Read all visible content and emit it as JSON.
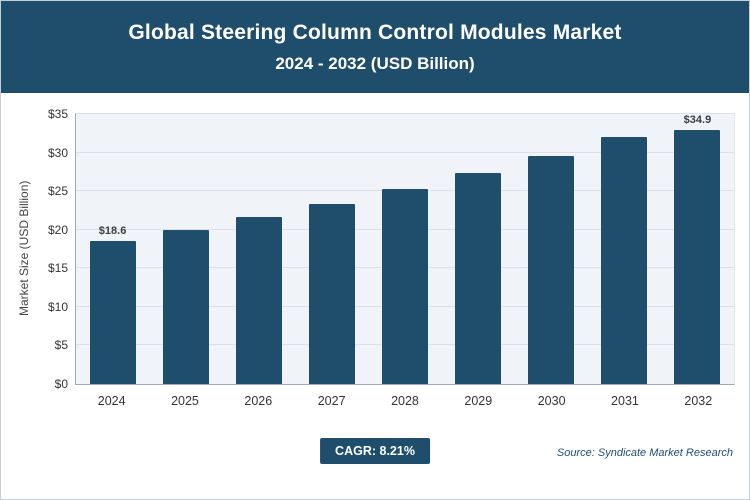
{
  "header": {
    "title": "Global Steering Column Control Modules Market",
    "subtitle": "2024 - 2032 (USD Billion)"
  },
  "chart_data": {
    "type": "bar",
    "title": "Global Steering Column Control Modules Market 2024 - 2032 (USD Billion)",
    "xlabel": "",
    "ylabel": "Market Size (USD Billion)",
    "ylim": [
      0,
      35
    ],
    "grid": true,
    "bar_color": "#1f4e6d",
    "plot_background": "#f0f3f8",
    "yticks": [
      {
        "value": 0,
        "label": "$0"
      },
      {
        "value": 5,
        "label": "$5"
      },
      {
        "value": 10,
        "label": "$10"
      },
      {
        "value": 15,
        "label": "$15"
      },
      {
        "value": 20,
        "label": "$20"
      },
      {
        "value": 25,
        "label": "$25"
      },
      {
        "value": 30,
        "label": "$30"
      },
      {
        "value": 35,
        "label": "$35"
      }
    ],
    "points": [
      {
        "year": "2024",
        "value": 18.6,
        "label": "$18.6"
      },
      {
        "year": "2025",
        "value": 20.0,
        "label": ""
      },
      {
        "year": "2026",
        "value": 21.6,
        "label": ""
      },
      {
        "year": "2027",
        "value": 23.4,
        "label": ""
      },
      {
        "year": "2028",
        "value": 25.3,
        "label": ""
      },
      {
        "year": "2029",
        "value": 27.3,
        "label": ""
      },
      {
        "year": "2030",
        "value": 29.6,
        "label": ""
      },
      {
        "year": "2031",
        "value": 32.0,
        "label": ""
      },
      {
        "year": "2032",
        "value": 34.9,
        "label": "$34.9"
      }
    ]
  },
  "footer": {
    "cagr_label": "CAGR: 8.21%",
    "source": "Source: Syndicate Market Research"
  }
}
